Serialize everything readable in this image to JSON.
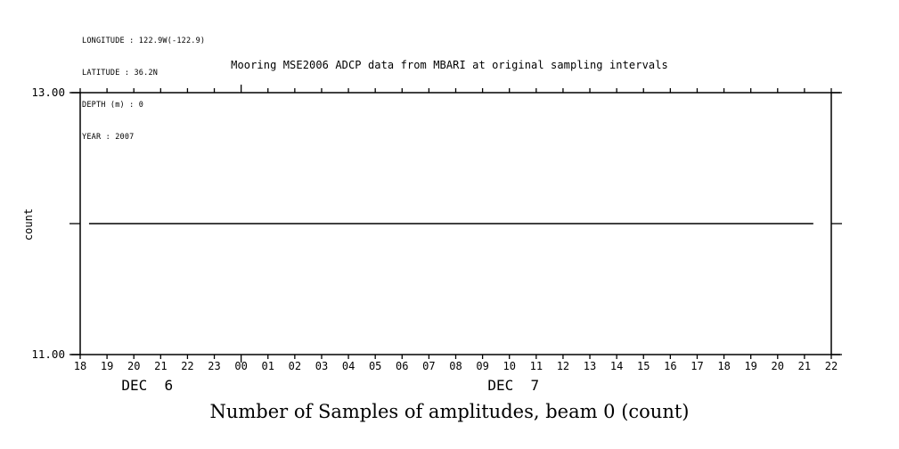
{
  "colors": {
    "foreground": "#000000",
    "background": "#ffffff"
  },
  "header": {
    "metadata_lines": [
      "LONGITUDE : 122.9W(-122.9)",
      "LATITUDE : 36.2N",
      "DEPTH (m) : 0",
      "YEAR : 2007"
    ]
  },
  "chart_data": {
    "type": "line",
    "title": "Mooring MSE2006 ADCP data from MBARI at original sampling intervals",
    "ylabel": "count",
    "caption": "Number of Samples of amplitudes, beam 0 (count)",
    "ylim": [
      11.0,
      13.0
    ],
    "y_ticks": [
      {
        "value": 13.0,
        "label": "13.00"
      },
      {
        "value": 12.0,
        "label": ""
      },
      {
        "value": 11.0,
        "label": "11.00"
      }
    ],
    "x_tick_labels": [
      "18",
      "19",
      "20",
      "21",
      "22",
      "23",
      "00",
      "01",
      "02",
      "03",
      "04",
      "05",
      "06",
      "07",
      "08",
      "09",
      "10",
      "11",
      "12",
      "13",
      "14",
      "15",
      "16",
      "17",
      "18",
      "19",
      "20",
      "21",
      "22"
    ],
    "x_major_tick_index": 6,
    "day_labels": [
      {
        "label": "DEC  6",
        "center_hour": 2.5
      },
      {
        "label": "DEC  7",
        "center_hour": 16.15
      }
    ],
    "grid": false,
    "legend": "none",
    "series": [
      {
        "name": "Number of Samples of amplitudes, beam 0",
        "value": 12.0,
        "points": [
          [
            0.33,
            12.0
          ],
          [
            27.33,
            12.0
          ]
        ]
      }
    ]
  }
}
